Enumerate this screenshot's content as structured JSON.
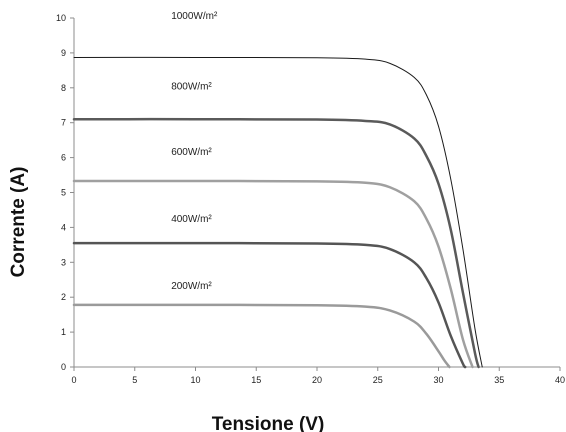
{
  "chart_data": {
    "type": "line",
    "title": "",
    "xlabel": "Tensione (V)",
    "ylabel": "Corrente (A)",
    "xlim": [
      0,
      40
    ],
    "ylim": [
      0,
      10
    ],
    "x_ticks": [
      "0",
      "5",
      "10",
      "15",
      "20",
      "25",
      "30",
      "35",
      "40"
    ],
    "y_ticks": [
      "0",
      "1",
      "2",
      "3",
      "4",
      "5",
      "6",
      "7",
      "8",
      "9",
      "10"
    ],
    "grid": false,
    "legend": "none",
    "series": [
      {
        "name": "1000W/m²",
        "color": "#1a1a1a",
        "stroke": 1,
        "x": [
          0,
          10,
          20,
          24,
          26,
          28,
          29,
          30,
          31,
          32,
          33,
          33.6
        ],
        "y": [
          8.87,
          8.87,
          8.86,
          8.82,
          8.7,
          8.3,
          7.8,
          6.9,
          5.4,
          3.4,
          1.1,
          0
        ]
      },
      {
        "name": "800W/m²",
        "color": "#5a5a5a",
        "stroke": 2.5,
        "x": [
          0,
          10,
          20,
          24,
          26,
          28,
          29,
          30,
          31,
          32,
          33,
          33.3
        ],
        "y": [
          7.1,
          7.1,
          7.09,
          7.05,
          6.95,
          6.55,
          6.05,
          5.25,
          3.95,
          2.15,
          0.4,
          0
        ]
      },
      {
        "name": "600W/m²",
        "color": "#a0a0a0",
        "stroke": 2.5,
        "x": [
          0,
          10,
          20,
          24,
          26,
          28,
          29,
          30,
          31,
          32,
          32.8
        ],
        "y": [
          5.33,
          5.33,
          5.32,
          5.28,
          5.15,
          4.75,
          4.25,
          3.45,
          2.25,
          0.8,
          0
        ]
      },
      {
        "name": "400W/m²",
        "color": "#555555",
        "stroke": 2.5,
        "x": [
          0,
          10,
          20,
          24,
          26,
          28,
          29,
          30,
          31,
          32,
          32.2
        ],
        "y": [
          3.55,
          3.55,
          3.54,
          3.5,
          3.38,
          3.0,
          2.55,
          1.85,
          0.9,
          0.1,
          0
        ]
      },
      {
        "name": "200W/m²",
        "color": "#9a9a9a",
        "stroke": 2.5,
        "x": [
          0,
          10,
          20,
          24,
          26,
          28,
          29,
          30,
          30.5,
          30.9
        ],
        "y": [
          1.78,
          1.78,
          1.77,
          1.73,
          1.62,
          1.3,
          0.95,
          0.45,
          0.18,
          0
        ]
      }
    ]
  }
}
